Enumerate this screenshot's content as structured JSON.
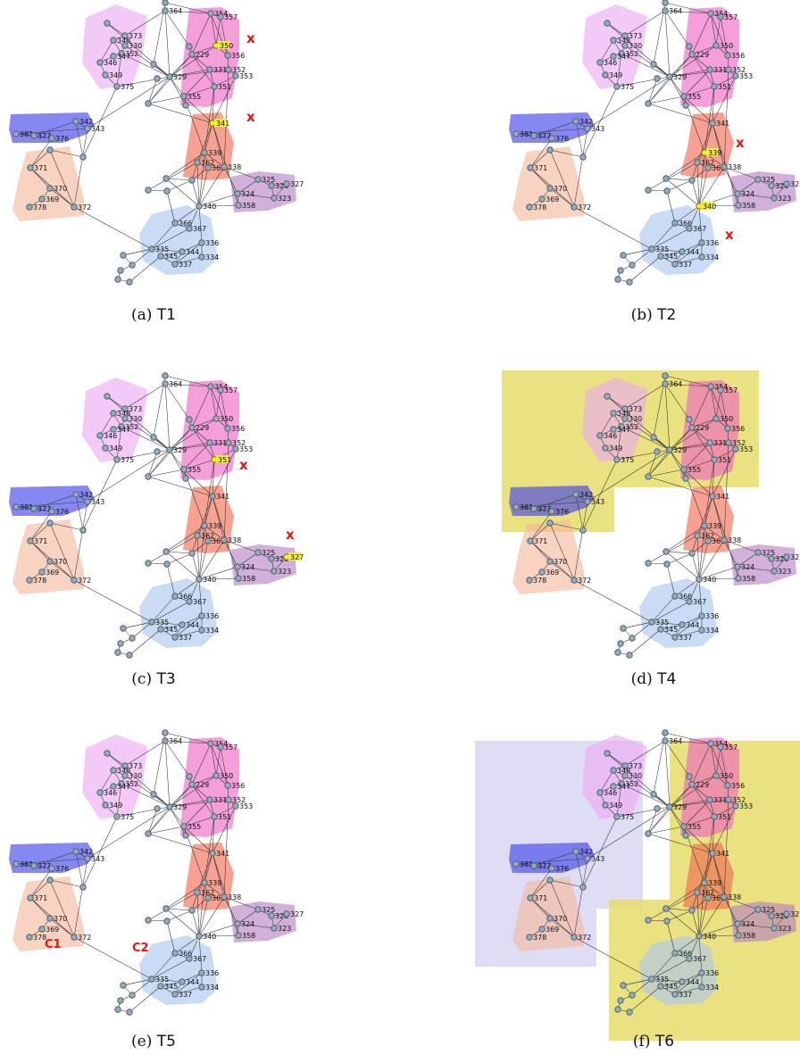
{
  "palette": {
    "pink": "#ee63c3",
    "lightpink": "#ecaaf2",
    "red": "#f0684e",
    "purple": "#b57fc3",
    "blue": "#3d3de8",
    "peach": "#f6b89b",
    "lightblue": "#a9c5ef",
    "node": "#95adbb",
    "highlight": "#f2ee33",
    "mark": "#e8140f",
    "yellowbox": "#e6dc6a",
    "lavenderbox": "#c9c7f0"
  },
  "node_labels": [
    "364",
    "373",
    "348",
    "330",
    "352",
    "347",
    "346",
    "349",
    "375",
    "354",
    "357",
    "350",
    "229",
    "356",
    "352",
    "329",
    "331",
    "353",
    "351",
    "355",
    "341",
    "339",
    "362",
    "361",
    "338",
    "342",
    "343",
    "381",
    "377",
    "376",
    "371",
    "370",
    "369",
    "378",
    "372",
    "325",
    "326",
    "327",
    "324",
    "323",
    "358",
    "340",
    "366",
    "367",
    "335",
    "336",
    "344",
    "345",
    "334",
    "337"
  ],
  "panels": [
    {
      "caption_letter": "(a)",
      "caption_id": "T1",
      "highlighted": [
        "350",
        "341"
      ],
      "marks": [
        "x",
        "x"
      ],
      "cluster_tags": []
    },
    {
      "caption_letter": "(b)",
      "caption_id": "T2",
      "highlighted": [
        "339",
        "340"
      ],
      "marks": [
        "x",
        "x"
      ],
      "cluster_tags": []
    },
    {
      "caption_letter": "(c)",
      "caption_id": "T3",
      "highlighted": [
        "351",
        "327"
      ],
      "marks": [
        "x",
        "x"
      ],
      "cluster_tags": []
    },
    {
      "caption_letter": "(d)",
      "caption_id": "T4",
      "highlighted": [],
      "marks": [],
      "cluster_tags": []
    },
    {
      "caption_letter": "(e)",
      "caption_id": "T5",
      "highlighted": [],
      "marks": [],
      "cluster_tags": [
        "C1",
        "C2"
      ]
    },
    {
      "caption_letter": "(f)",
      "caption_id": "T6",
      "highlighted": [],
      "marks": [],
      "cluster_tags": []
    }
  ]
}
